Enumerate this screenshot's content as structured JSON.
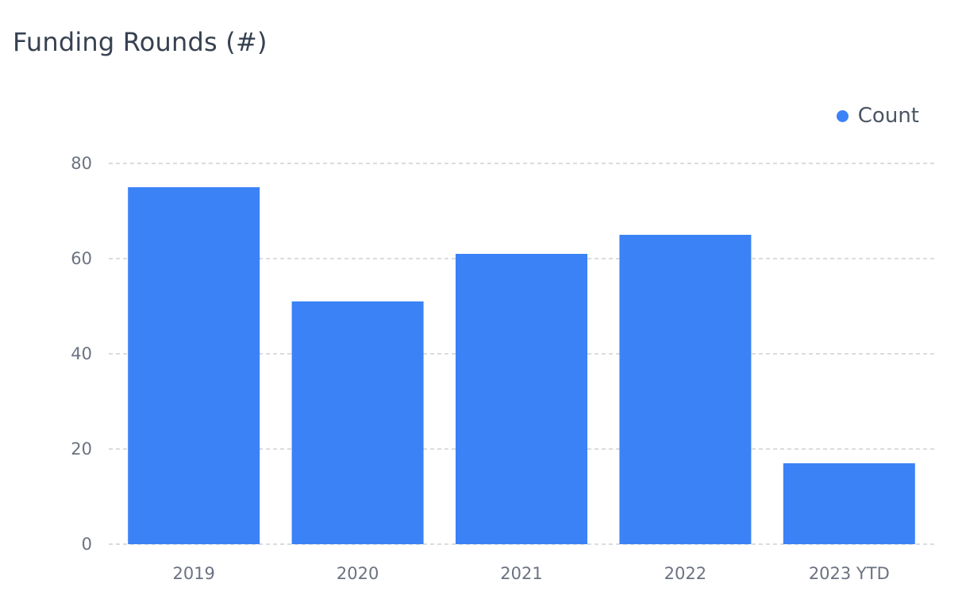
{
  "chart_data": {
    "type": "bar",
    "title": "Funding Rounds (#)",
    "categories": [
      "2019",
      "2020",
      "2021",
      "2022",
      "2023 YTD"
    ],
    "series": [
      {
        "name": "Count",
        "color": "#3b82f6",
        "values": [
          75,
          51,
          61,
          65,
          17
        ]
      }
    ],
    "ylim": [
      0,
      80
    ],
    "yticks": [
      0,
      20,
      40,
      60,
      80
    ],
    "xlabel": "",
    "ylabel": "",
    "grid": "horizontal-dashed",
    "legend_position": "top-right"
  }
}
